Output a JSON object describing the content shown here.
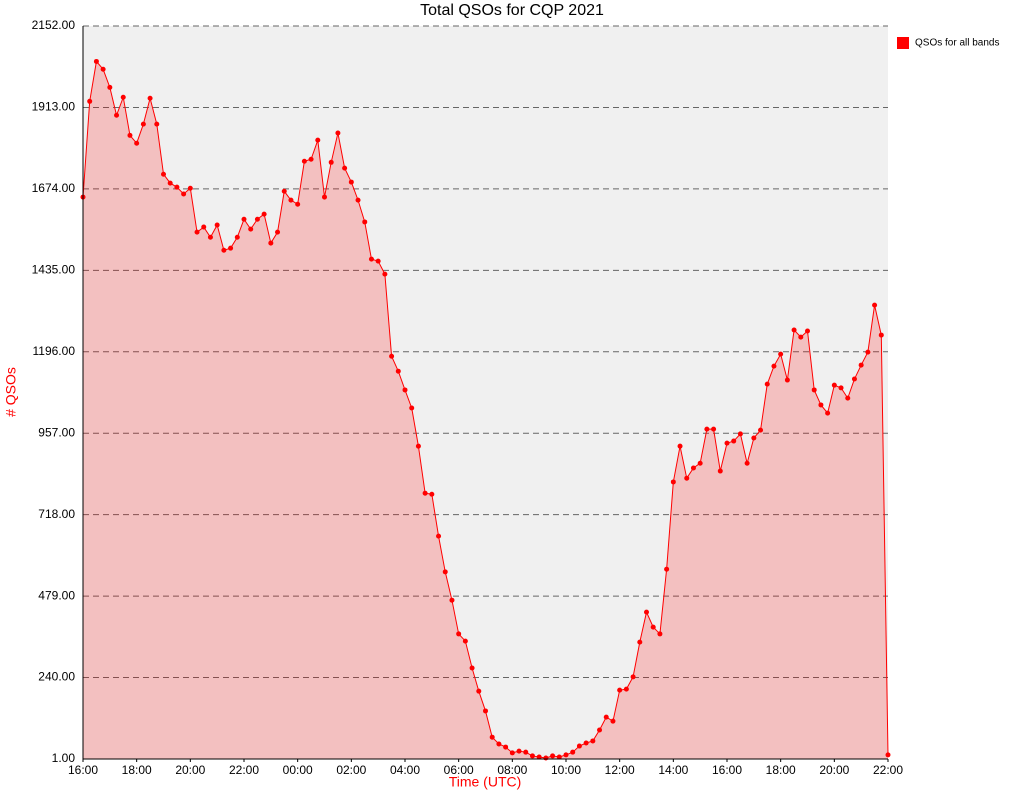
{
  "chart_data": {
    "type": "area",
    "title": "Total QSOs for CQP 2021",
    "x_label": "Time (UTC)",
    "y_label": "# QSOs",
    "axis_label_color": "#ff0000",
    "categories": [
      "16:00",
      null,
      null,
      null,
      null,
      null,
      null,
      null,
      "18:00",
      null,
      null,
      null,
      null,
      null,
      null,
      null,
      "20:00",
      null,
      null,
      null,
      null,
      null,
      null,
      null,
      "22:00",
      null,
      null,
      null,
      null,
      null,
      null,
      null,
      "00:00",
      null,
      null,
      null,
      null,
      null,
      null,
      null,
      "02:00",
      null,
      null,
      null,
      null,
      null,
      null,
      null,
      "04:00",
      null,
      null,
      null,
      null,
      null,
      null,
      null,
      "06:00",
      null,
      null,
      null,
      null,
      null,
      null,
      null,
      "08:00",
      null,
      null,
      null,
      null,
      null,
      null,
      null,
      "10:00",
      null,
      null,
      null,
      null,
      null,
      null,
      null,
      "12:00",
      null,
      null,
      null,
      null,
      null,
      null,
      null,
      "14:00",
      null,
      null,
      null,
      null,
      null,
      null,
      null,
      "16:00",
      null,
      null,
      null,
      null,
      null,
      null,
      null,
      "18:00",
      null,
      null,
      null,
      null,
      null,
      null,
      null,
      "20:00",
      null,
      null,
      null,
      null,
      null,
      null,
      null,
      "22:00"
    ],
    "series": [
      {
        "name": "QSOs for all bands",
        "color": "#ff0000",
        "values": [
          1650,
          1931,
          2048,
          2025,
          1972,
          1890,
          1943,
          1831,
          1808,
          1864,
          1940,
          1864,
          1717,
          1691,
          1679,
          1659,
          1676,
          1547,
          1562,
          1532,
          1568,
          1494,
          1500,
          1532,
          1585,
          1556,
          1585,
          1600,
          1515,
          1547,
          1667,
          1641,
          1629,
          1755,
          1761,
          1817,
          1650,
          1752,
          1838,
          1735,
          1694,
          1641,
          1577,
          1468,
          1462,
          1424,
          1183,
          1139,
          1084,
          1031,
          919,
          781,
          778,
          655,
          550,
          467,
          368,
          347,
          268,
          200,
          142,
          65,
          45,
          36,
          19,
          24,
          21,
          10,
          7,
          4,
          10,
          7,
          13,
          21,
          39,
          48,
          54,
          86,
          124,
          112,
          203,
          206,
          242,
          344,
          432,
          388,
          368,
          558,
          814,
          919,
          825,
          855,
          869,
          969,
          969,
          846,
          928,
          934,
          955,
          869,
          943,
          966,
          1101,
          1154,
          1189,
          1113,
          1260,
          1239,
          1257,
          1084,
          1040,
          1016,
          1098,
          1090,
          1060,
          1116,
          1157,
          1195,
          1333,
          1245,
          13
        ]
      }
    ],
    "ylim": [
      1,
      2152
    ],
    "yticks": [
      {
        "value": 1,
        "label": "1.00"
      },
      {
        "value": 240,
        "label": "240.00"
      },
      {
        "value": 479,
        "label": "479.00"
      },
      {
        "value": 718,
        "label": "718.00"
      },
      {
        "value": 957,
        "label": "957.00"
      },
      {
        "value": 1196,
        "label": "1196.00"
      },
      {
        "value": 1435,
        "label": "1435.00"
      },
      {
        "value": 1674,
        "label": "1674.00"
      },
      {
        "value": 1913,
        "label": "1913.00"
      },
      {
        "value": 2152,
        "label": "2152.00"
      }
    ],
    "grid": true,
    "legend": "top-right"
  }
}
